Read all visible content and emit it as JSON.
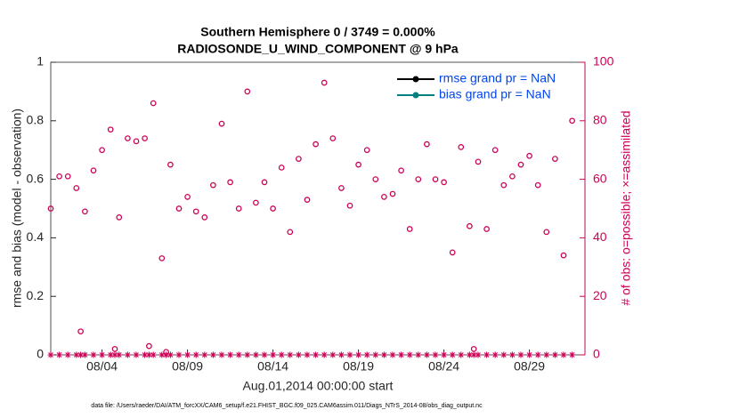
{
  "chart_data": {
    "type": "scatter",
    "title": [
      "Southern Hemisphere 0 / 3749 = 0.000%",
      "RADIOSONDE_U_WIND_COMPONENT @ 9 hPa"
    ],
    "xlabel": "Aug.01,2014 00:00:00 start",
    "ylabel": "rmse and bias (model - observation)",
    "y2label": "# of obs: o=possible; ×=assimilated",
    "footnote": "data file: /Users/raeder/DAI/ATM_forcXX/CAM6_setup/f.e21.FHIST_BGC.f09_025.CAM6assim.011/Diags_NTrS_2014-08/obs_diag_output.nc",
    "x": [
      0,
      0.5,
      1,
      1.5,
      1.75,
      2,
      2.5,
      3,
      3.5,
      3.75,
      4,
      4.5,
      5,
      5.5,
      5.75,
      6,
      6.5,
      6.75,
      7,
      7.5,
      8,
      8.5,
      9,
      9.5,
      10,
      10.5,
      11,
      11.5,
      12,
      12.5,
      13,
      13.5,
      14,
      14.5,
      15,
      15.5,
      16,
      16.5,
      17,
      17.5,
      18,
      18.5,
      19,
      19.5,
      20,
      20.5,
      21,
      21.5,
      22,
      22.5,
      23,
      23.5,
      24,
      24.5,
      24.75,
      25,
      25.5,
      26,
      26.5,
      27,
      27.5,
      28,
      28.5,
      29,
      29.5,
      30,
      30.5
    ],
    "xlim": [
      0,
      31.25
    ],
    "xticks": [
      {
        "value": 3,
        "label": "08/04"
      },
      {
        "value": 8,
        "label": "08/09"
      },
      {
        "value": 13,
        "label": "08/14"
      },
      {
        "value": 18,
        "label": "08/19"
      },
      {
        "value": 23,
        "label": "08/24"
      },
      {
        "value": 28,
        "label": "08/29"
      }
    ],
    "ylim": [
      0,
      1
    ],
    "yticks": [
      0,
      0.2,
      0.4,
      0.6,
      0.8,
      1
    ],
    "y2lim": [
      0,
      100
    ],
    "y2ticks": [
      0,
      20,
      40,
      60,
      80,
      100
    ],
    "legend": "upper right",
    "series": [
      {
        "name": "rmse grand pr = NaN",
        "color": "#000000",
        "values": [
          null,
          null,
          null,
          null,
          null,
          null,
          null,
          null,
          null,
          null,
          null,
          null,
          null,
          null,
          null,
          null,
          null,
          null,
          null,
          null,
          null,
          null,
          null,
          null,
          null,
          null,
          null,
          null,
          null,
          null,
          null,
          null,
          null,
          null,
          null,
          null,
          null,
          null,
          null,
          null,
          null,
          null,
          null,
          null,
          null,
          null,
          null,
          null,
          null,
          null,
          null,
          null,
          null,
          null,
          null,
          null,
          null,
          null,
          null,
          null,
          null,
          null,
          null,
          null,
          null,
          null,
          null
        ]
      },
      {
        "name": "bias grand pr = NaN",
        "color": "#008080",
        "values": [
          null,
          null,
          null,
          null,
          null,
          null,
          null,
          null,
          null,
          null,
          null,
          null,
          null,
          null,
          null,
          null,
          null,
          null,
          null,
          null,
          null,
          null,
          null,
          null,
          null,
          null,
          null,
          null,
          null,
          null,
          null,
          null,
          null,
          null,
          null,
          null,
          null,
          null,
          null,
          null,
          null,
          null,
          null,
          null,
          null,
          null,
          null,
          null,
          null,
          null,
          null,
          null,
          null,
          null,
          null,
          null,
          null,
          null,
          null,
          null,
          null,
          null,
          null,
          null,
          null,
          null,
          null
        ]
      },
      {
        "color": "#cc0055",
        "marker": "o",
        "axis": "y2",
        "values": [
          50,
          61,
          61,
          57,
          8,
          49,
          63,
          70,
          77,
          2,
          47,
          74,
          73,
          74,
          3,
          86,
          33,
          1,
          65,
          50,
          54,
          49,
          47,
          58,
          79,
          59,
          50,
          90,
          52,
          59,
          50,
          64,
          42,
          67,
          53,
          72,
          93,
          74,
          57,
          51,
          65,
          70,
          60,
          54,
          55,
          63,
          43,
          60,
          72,
          60,
          59,
          35,
          71,
          44,
          2,
          66,
          43,
          70,
          58,
          61,
          65,
          68,
          58,
          42,
          67,
          34,
          80
        ]
      },
      {
        "color": "#cc0055",
        "marker": "*",
        "axis": "y2",
        "values": [
          0,
          0,
          0,
          0,
          0,
          0,
          0,
          0,
          0,
          0,
          0,
          0,
          0,
          0,
          0,
          0,
          0,
          0,
          0,
          0,
          0,
          0,
          0,
          0,
          0,
          0,
          0,
          0,
          0,
          0,
          0,
          0,
          0,
          0,
          0,
          0,
          0,
          0,
          0,
          0,
          0,
          0,
          0,
          0,
          0,
          0,
          0,
          0,
          0,
          0,
          0,
          0,
          0,
          0,
          0,
          0,
          0,
          0,
          0,
          0,
          0,
          0,
          0,
          0,
          0,
          0,
          0
        ]
      }
    ]
  }
}
